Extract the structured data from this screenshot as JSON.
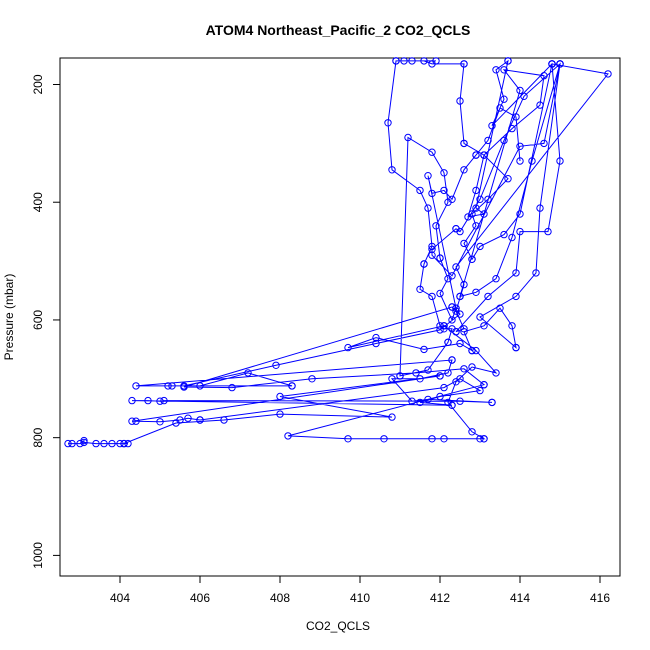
{
  "chart_data": {
    "type": "line",
    "title": "ATOM4 Northeast_Pacific_2 CO2_QCLS",
    "xlabel": "CO2_QCLS",
    "ylabel": "Pressure (mbar)",
    "xlim": [
      402.5,
      416.5
    ],
    "ylim": [
      1035,
      155
    ],
    "y_inverted": true,
    "x_ticks": [
      404,
      406,
      408,
      410,
      412,
      414,
      416
    ],
    "y_ticks": [
      200,
      400,
      600,
      800,
      1000
    ],
    "x_tick_labels": [
      "404",
      "406",
      "408",
      "410",
      "412",
      "414",
      "416"
    ],
    "y_tick_labels": [
      "200",
      "400",
      "600",
      "800",
      "1000"
    ],
    "grid": false,
    "marker": "open-circle",
    "series_color": "#0000ff",
    "series": [
      {
        "name": "",
        "points": [
          [
            402.7,
            810
          ],
          [
            402.8,
            810
          ],
          [
            403.0,
            810
          ],
          [
            403.1,
            805
          ],
          [
            403.1,
            808
          ],
          [
            403.4,
            810
          ],
          [
            403.6,
            810
          ],
          [
            403.8,
            810
          ],
          [
            404.0,
            810
          ],
          [
            404.2,
            810
          ],
          [
            404.1,
            810
          ],
          [
            404.1,
            810
          ],
          [
            405.4,
            775
          ],
          [
            406.6,
            770
          ],
          [
            408.0,
            760
          ],
          [
            410.8,
            765
          ],
          [
            408.0,
            730
          ],
          [
            412.0,
            695
          ],
          [
            412.0,
            695
          ],
          [
            404.3,
            772
          ],
          [
            404.4,
            772
          ],
          [
            405.0,
            773
          ],
          [
            405.5,
            770
          ],
          [
            405.7,
            767
          ],
          [
            406.0,
            770
          ],
          [
            406.0,
            770
          ],
          [
            412.1,
            715
          ],
          [
            412.5,
            700
          ],
          [
            413.0,
            720
          ],
          [
            412.0,
            730
          ],
          [
            411.5,
            740
          ],
          [
            412.3,
            745
          ],
          [
            412.3,
            745
          ],
          [
            404.3,
            737
          ],
          [
            404.7,
            737
          ],
          [
            405.0,
            738
          ],
          [
            405.1,
            737
          ],
          [
            412.5,
            738
          ],
          [
            413.3,
            740
          ],
          [
            413.3,
            740
          ],
          [
            411.7,
            735
          ],
          [
            411.3,
            738
          ],
          [
            410.8,
            700
          ],
          [
            411.5,
            700
          ],
          [
            412.2,
            690
          ],
          [
            412.3,
            668
          ],
          [
            412.3,
            668
          ],
          [
            404.4,
            712
          ],
          [
            405.2,
            712
          ],
          [
            405.3,
            712
          ],
          [
            406.0,
            712
          ],
          [
            407.2,
            690
          ],
          [
            408.3,
            712
          ],
          [
            408.3,
            712
          ],
          [
            405.6,
            712
          ],
          [
            407.9,
            677
          ],
          [
            410.4,
            640
          ],
          [
            412.0,
            617
          ],
          [
            412.5,
            590
          ],
          [
            412.3,
            578
          ],
          [
            412.3,
            578
          ],
          [
            405.6,
            714
          ],
          [
            406.8,
            715
          ],
          [
            408.8,
            700
          ],
          [
            411.4,
            690
          ],
          [
            412.6,
            683
          ],
          [
            413.1,
            710
          ],
          [
            413.1,
            710
          ],
          [
            408.2,
            797
          ],
          [
            409.7,
            802
          ],
          [
            410.6,
            802
          ],
          [
            411.8,
            802
          ],
          [
            412.1,
            802
          ],
          [
            413.0,
            802
          ],
          [
            413.1,
            802
          ],
          [
            413.1,
            802
          ],
          [
            412.8,
            790
          ],
          [
            412.2,
            740
          ],
          [
            412.4,
            705
          ],
          [
            412.8,
            680
          ],
          [
            413.4,
            690
          ],
          [
            412.9,
            652
          ],
          [
            412.1,
            610
          ],
          [
            412.1,
            610
          ],
          [
            409.7,
            647
          ],
          [
            410.4,
            630
          ],
          [
            411.6,
            650
          ],
          [
            412.5,
            640
          ],
          [
            412.8,
            652
          ],
          [
            412.8,
            652
          ],
          [
            412.6,
            620
          ],
          [
            413.1,
            610
          ],
          [
            413.5,
            580
          ],
          [
            413.8,
            610
          ],
          [
            413.9,
            647
          ],
          [
            413.9,
            647
          ],
          [
            413.0,
            595
          ],
          [
            413.9,
            560
          ],
          [
            414.4,
            520
          ],
          [
            414.5,
            410
          ],
          [
            415.0,
            165
          ],
          [
            415.0,
            165
          ],
          [
            414.6,
            300
          ],
          [
            414.0,
            305
          ],
          [
            412.3,
            525
          ],
          [
            411.8,
            490
          ],
          [
            411.8,
            480
          ],
          [
            412.4,
            445
          ],
          [
            412.4,
            445
          ],
          [
            412.5,
            450
          ],
          [
            413.0,
            395
          ],
          [
            413.6,
            295
          ],
          [
            414.1,
            220
          ],
          [
            415.0,
            165
          ],
          [
            415.0,
            165
          ],
          [
            414.3,
            330
          ],
          [
            413.8,
            460
          ],
          [
            413.4,
            530
          ],
          [
            412.9,
            553
          ],
          [
            412.5,
            560
          ],
          [
            412.5,
            560
          ],
          [
            414.0,
            210
          ],
          [
            413.6,
            175
          ],
          [
            414.6,
            185
          ],
          [
            414.5,
            235
          ],
          [
            413.8,
            275
          ],
          [
            413.1,
            320
          ],
          [
            413.1,
            320
          ],
          [
            413.7,
            360
          ],
          [
            413.2,
            395
          ],
          [
            412.8,
            420
          ],
          [
            412.9,
            440
          ],
          [
            412.6,
            470
          ],
          [
            412.8,
            497
          ],
          [
            412.8,
            497
          ],
          [
            413.0,
            475
          ],
          [
            413.6,
            455
          ],
          [
            414.0,
            420
          ],
          [
            414.8,
            165
          ],
          [
            414.8,
            165
          ],
          [
            416.2,
            182
          ],
          [
            412.4,
            510
          ],
          [
            412.6,
            540
          ],
          [
            412.4,
            585
          ],
          [
            412.6,
            615
          ],
          [
            412.4,
            620
          ],
          [
            412.4,
            620
          ],
          [
            413.2,
            560
          ],
          [
            413.9,
            520
          ],
          [
            414.0,
            450
          ],
          [
            414.7,
            450
          ],
          [
            415.0,
            330
          ],
          [
            414.8,
            165
          ],
          [
            414.8,
            165
          ],
          [
            413.3,
            270
          ],
          [
            413.6,
            225
          ],
          [
            413.4,
            175
          ],
          [
            413.7,
            160
          ],
          [
            413.7,
            160
          ],
          [
            412.9,
            410
          ],
          [
            413.1,
            420
          ],
          [
            412.7,
            425
          ],
          [
            412.9,
            380
          ],
          [
            413.1,
            320
          ],
          [
            412.6,
            300
          ],
          [
            412.6,
            300
          ],
          [
            412.5,
            228
          ],
          [
            412.6,
            165
          ],
          [
            412.6,
            165
          ],
          [
            411.8,
            165
          ],
          [
            411.6,
            160
          ],
          [
            411.9,
            160
          ],
          [
            411.3,
            160
          ],
          [
            411.1,
            160
          ],
          [
            410.9,
            160
          ],
          [
            410.9,
            160
          ],
          [
            410.7,
            265
          ],
          [
            410.8,
            345
          ],
          [
            411.5,
            380
          ],
          [
            411.7,
            410
          ],
          [
            411.8,
            475
          ],
          [
            411.6,
            505
          ],
          [
            411.6,
            505
          ],
          [
            411.5,
            548
          ],
          [
            411.8,
            560
          ],
          [
            412.0,
            610
          ],
          [
            412.1,
            615
          ],
          [
            412.3,
            615
          ],
          [
            412.2,
            638
          ],
          [
            412.2,
            638
          ],
          [
            411.7,
            685
          ],
          [
            411.0,
            695
          ],
          [
            411.0,
            695
          ],
          [
            411.2,
            290
          ],
          [
            411.8,
            315
          ],
          [
            412.1,
            350
          ],
          [
            412.2,
            400
          ],
          [
            411.9,
            440
          ],
          [
            412.0,
            495
          ],
          [
            412.0,
            495
          ],
          [
            412.2,
            530
          ],
          [
            412.0,
            555
          ],
          [
            412.3,
            600
          ],
          [
            412.4,
            580
          ],
          [
            412.4,
            580
          ],
          [
            411.7,
            355
          ],
          [
            411.8,
            385
          ],
          [
            412.1,
            380
          ],
          [
            412.3,
            395
          ],
          [
            412.6,
            345
          ],
          [
            412.9,
            320
          ],
          [
            412.9,
            320
          ],
          [
            413.2,
            295
          ],
          [
            413.5,
            240
          ],
          [
            413.9,
            255
          ],
          [
            414.0,
            330
          ]
        ]
      }
    ]
  }
}
